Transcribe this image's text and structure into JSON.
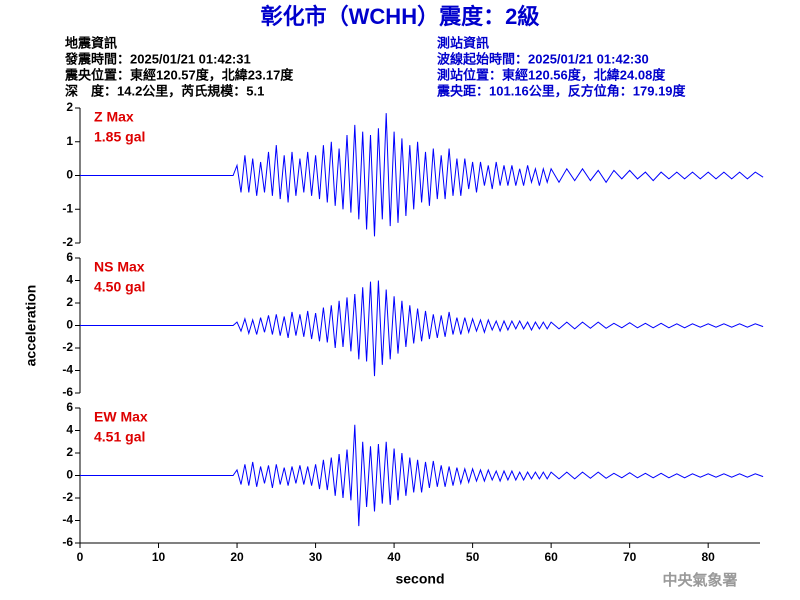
{
  "header": {
    "title": "彰化市（WCHH）震度：2級",
    "left": [
      "地震資訊",
      "發震時間：2025/01/21 01:42:31",
      "震央位置：東經120.57度，北緯23.17度",
      "深　度：14.2公里，芮氏規模：5.1"
    ],
    "right": [
      "測站資訊",
      "波線起始時間：2025/01/21 01:42:30",
      "測站位置：東經120.56度，北緯24.08度",
      "震央距：101.16公里，反方位角：179.19度"
    ],
    "watermark": "中央氣象署"
  },
  "chart_data": [
    {
      "type": "line",
      "annotation": [
        "Z Max",
        "1.85 gal"
      ],
      "color": "#0000ff",
      "xlim": [
        0,
        86.6
      ],
      "ylim": [
        -2,
        2
      ],
      "yticks": [
        -2,
        -1,
        0,
        1,
        2
      ],
      "x": [
        0,
        19.5,
        20,
        20.5,
        21,
        21.5,
        22,
        22.5,
        23,
        23.5,
        24,
        24.5,
        25,
        25.5,
        26,
        26.5,
        27,
        27.5,
        28,
        28.5,
        29,
        29.5,
        30,
        30.5,
        31,
        31.5,
        32,
        32.5,
        33,
        33.5,
        34,
        34.5,
        35,
        35.5,
        36,
        36.5,
        37,
        37.5,
        38,
        38.5,
        39,
        39.5,
        40,
        40.5,
        41,
        41.5,
        42,
        42.5,
        43,
        43.5,
        44,
        44.5,
        45,
        45.5,
        46,
        46.5,
        47,
        47.5,
        48,
        48.5,
        49,
        49.5,
        50,
        50.5,
        51,
        51.5,
        52,
        52.5,
        53,
        53.5,
        54,
        54.5,
        55,
        55.5,
        56,
        56.5,
        57,
        57.5,
        58,
        58.5,
        59,
        59.5,
        60,
        61,
        62,
        63,
        64,
        65,
        66,
        67,
        68,
        69,
        70,
        71,
        72,
        73,
        74,
        75,
        76,
        77,
        78,
        79,
        80,
        81,
        82,
        83,
        84,
        85,
        86,
        87
      ],
      "values": [
        0,
        0,
        0.3,
        -0.5,
        0.6,
        -0.5,
        0.5,
        -0.6,
        0.4,
        -0.5,
        0.7,
        -0.6,
        0.9,
        -0.7,
        0.6,
        -0.8,
        0.7,
        -0.6,
        0.5,
        -0.5,
        0.7,
        -0.6,
        0.6,
        -0.7,
        0.9,
        -0.8,
        1.0,
        -0.9,
        0.8,
        -1.0,
        1.2,
        -1.1,
        1.5,
        -1.3,
        1.3,
        -1.6,
        1.2,
        -1.8,
        1.4,
        -1.3,
        1.85,
        -1.5,
        1.3,
        -1.4,
        1.1,
        -1.2,
        0.9,
        -1.0,
        1.0,
        -0.8,
        0.7,
        -0.9,
        0.8,
        -0.7,
        0.6,
        -0.7,
        0.8,
        -0.6,
        0.5,
        -0.6,
        0.5,
        -0.4,
        0.4,
        -0.5,
        0.4,
        -0.3,
        0.3,
        -0.4,
        0.4,
        -0.3,
        0.3,
        -0.3,
        0.3,
        -0.3,
        0.2,
        -0.3,
        0.3,
        -0.2,
        0.2,
        -0.3,
        0.2,
        -0.2,
        0.2,
        -0.2,
        0.2,
        -0.15,
        0.2,
        -0.15,
        0.15,
        -0.2,
        0.15,
        -0.1,
        0.15,
        -0.1,
        0.1,
        -0.15,
        0.1,
        -0.1,
        0.1,
        -0.1,
        0.1,
        -0.1,
        0.1,
        -0.1,
        0.1,
        -0.1,
        0.1,
        -0.1,
        0.1,
        -0.05
      ]
    },
    {
      "type": "line",
      "annotation": [
        "NS Max",
        "4.50 gal"
      ],
      "color": "#0000ff",
      "ylabel": "acceleration",
      "xlim": [
        0,
        86.6
      ],
      "ylim": [
        -6,
        6
      ],
      "yticks": [
        -6,
        -4,
        -2,
        0,
        2,
        4,
        6
      ],
      "x": [
        0,
        19.5,
        20,
        20.5,
        21,
        21.5,
        22,
        22.5,
        23,
        23.5,
        24,
        24.5,
        25,
        25.5,
        26,
        26.5,
        27,
        27.5,
        28,
        28.5,
        29,
        29.5,
        30,
        30.5,
        31,
        31.5,
        32,
        32.5,
        33,
        33.5,
        34,
        34.5,
        35,
        35.5,
        36,
        36.5,
        37,
        37.5,
        38,
        38.5,
        39,
        39.5,
        40,
        40.5,
        41,
        41.5,
        42,
        42.5,
        43,
        43.5,
        44,
        44.5,
        45,
        45.5,
        46,
        46.5,
        47,
        47.5,
        48,
        48.5,
        49,
        49.5,
        50,
        50.5,
        51,
        51.5,
        52,
        52.5,
        53,
        53.5,
        54,
        54.5,
        55,
        55.5,
        56,
        56.5,
        57,
        57.5,
        58,
        58.5,
        59,
        59.5,
        60,
        61,
        62,
        63,
        64,
        65,
        66,
        67,
        68,
        69,
        70,
        71,
        72,
        73,
        74,
        75,
        76,
        77,
        78,
        79,
        80,
        81,
        82,
        83,
        84,
        85,
        86,
        87
      ],
      "values": [
        0,
        0,
        0.3,
        -0.5,
        0.6,
        -0.7,
        0.5,
        -0.8,
        0.7,
        -0.6,
        0.9,
        -0.8,
        1.0,
        -0.9,
        0.8,
        -1.1,
        1.2,
        -0.9,
        1.0,
        -1.0,
        1.3,
        -1.2,
        1.1,
        -1.4,
        1.6,
        -1.5,
        1.8,
        -2.0,
        2.2,
        -1.9,
        2.5,
        -2.3,
        2.8,
        -3.0,
        3.4,
        -3.2,
        3.9,
        -4.5,
        4.0,
        -3.5,
        3.2,
        -3.0,
        2.6,
        -2.5,
        2.2,
        -1.9,
        1.8,
        -1.6,
        1.5,
        -1.4,
        1.3,
        -1.2,
        1.0,
        -1.1,
        0.9,
        -1.0,
        1.2,
        -0.8,
        0.7,
        -0.8,
        0.7,
        -0.6,
        0.6,
        -0.5,
        0.5,
        -0.6,
        0.5,
        -0.4,
        0.4,
        -0.5,
        0.4,
        -0.4,
        0.4,
        -0.3,
        0.4,
        -0.3,
        0.3,
        -0.4,
        0.3,
        -0.3,
        0.3,
        -0.3,
        0.3,
        -0.3,
        0.3,
        -0.3,
        0.3,
        -0.25,
        0.3,
        -0.25,
        0.2,
        -0.2,
        0.25,
        -0.2,
        0.2,
        -0.2,
        0.2,
        -0.2,
        0.15,
        -0.2,
        0.15,
        -0.15,
        0.15,
        -0.15,
        0.15,
        -0.15,
        0.15,
        -0.15,
        0.15,
        -0.1
      ]
    },
    {
      "type": "line",
      "annotation": [
        "EW Max",
        "4.51 gal"
      ],
      "color": "#0000ff",
      "xlabel": "second",
      "xlim": [
        0,
        86.6
      ],
      "xticks": [
        0,
        10,
        20,
        30,
        40,
        50,
        60,
        70,
        80
      ],
      "ylim": [
        -6,
        6
      ],
      "yticks": [
        -6,
        -4,
        -2,
        0,
        2,
        4,
        6
      ],
      "x": [
        0,
        19.5,
        20,
        20.5,
        21,
        21.5,
        22,
        22.5,
        23,
        23.5,
        24,
        24.5,
        25,
        25.5,
        26,
        26.5,
        27,
        27.5,
        28,
        28.5,
        29,
        29.5,
        30,
        30.5,
        31,
        31.5,
        32,
        32.5,
        33,
        33.5,
        34,
        34.5,
        35,
        35.5,
        36,
        36.5,
        37,
        37.5,
        38,
        38.5,
        39,
        39.5,
        40,
        40.5,
        41,
        41.5,
        42,
        42.5,
        43,
        43.5,
        44,
        44.5,
        45,
        45.5,
        46,
        46.5,
        47,
        47.5,
        48,
        48.5,
        49,
        49.5,
        50,
        50.5,
        51,
        51.5,
        52,
        52.5,
        53,
        53.5,
        54,
        54.5,
        55,
        55.5,
        56,
        56.5,
        57,
        57.5,
        58,
        58.5,
        59,
        59.5,
        60,
        61,
        62,
        63,
        64,
        65,
        66,
        67,
        68,
        69,
        70,
        71,
        72,
        73,
        74,
        75,
        76,
        77,
        78,
        79,
        80,
        81,
        82,
        83,
        84,
        85,
        86,
        87
      ],
      "values": [
        0,
        0,
        0.5,
        -0.8,
        1.0,
        -0.9,
        1.2,
        -1.0,
        0.8,
        -0.7,
        0.9,
        -1.1,
        1.0,
        -0.8,
        0.7,
        -0.9,
        0.8,
        -0.7,
        0.9,
        -0.8,
        0.8,
        -0.9,
        1.0,
        -1.2,
        1.4,
        -1.3,
        1.6,
        -1.8,
        1.9,
        -2.0,
        2.3,
        -2.2,
        4.51,
        -4.5,
        3.0,
        -2.8,
        2.6,
        -3.2,
        2.8,
        -2.5,
        3.0,
        -2.6,
        2.4,
        -2.2,
        2.0,
        -1.8,
        1.6,
        -1.5,
        1.4,
        -1.5,
        1.2,
        -1.1,
        1.3,
        -1.0,
        0.9,
        -1.0,
        0.8,
        -0.9,
        0.7,
        -0.7,
        0.6,
        -0.6,
        0.6,
        -0.5,
        0.5,
        -0.5,
        0.5,
        -0.4,
        0.4,
        -0.5,
        0.4,
        -0.4,
        0.4,
        -0.4,
        0.3,
        -0.4,
        0.3,
        -0.3,
        0.3,
        -0.3,
        0.3,
        -0.3,
        0.3,
        -0.3,
        0.3,
        -0.3,
        0.3,
        -0.25,
        0.3,
        -0.25,
        0.2,
        -0.2,
        0.25,
        -0.2,
        0.2,
        -0.2,
        0.2,
        -0.2,
        0.15,
        -0.2,
        0.15,
        -0.15,
        0.15,
        -0.15,
        0.15,
        -0.15,
        0.15,
        -0.15,
        0.15,
        -0.1
      ]
    }
  ]
}
